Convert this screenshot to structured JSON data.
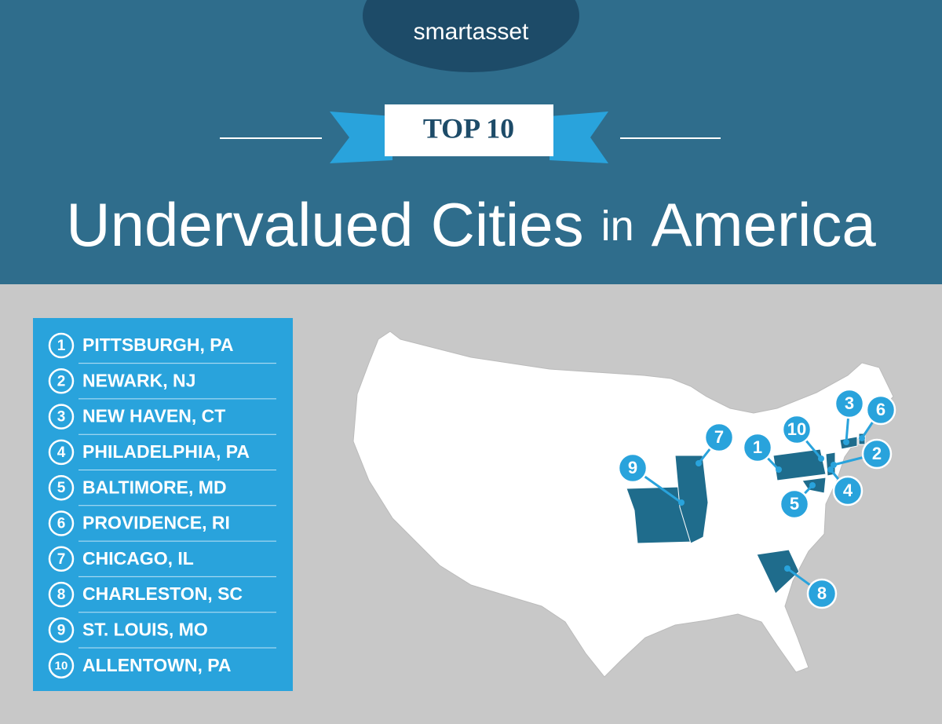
{
  "header": {
    "logo": "smartasset",
    "banner": "TOP 10",
    "title": [
      "Undervalued",
      "Cities",
      "in",
      "America"
    ]
  },
  "list": [
    {
      "rank": "1",
      "name": "PITTSBURGH, PA"
    },
    {
      "rank": "2",
      "name": "NEWARK, NJ"
    },
    {
      "rank": "3",
      "name": "NEW HAVEN, CT"
    },
    {
      "rank": "4",
      "name": "PHILADELPHIA, PA"
    },
    {
      "rank": "5",
      "name": "BALTIMORE, MD"
    },
    {
      "rank": "6",
      "name": "PROVIDENCE, RI"
    },
    {
      "rank": "7",
      "name": "CHICAGO, IL"
    },
    {
      "rank": "8",
      "name": "CHARLESTON, SC"
    },
    {
      "rank": "9",
      "name": "ST. LOUIS, MO"
    },
    {
      "rank": "10",
      "name": "ALLENTOWN, PA"
    }
  ]
}
